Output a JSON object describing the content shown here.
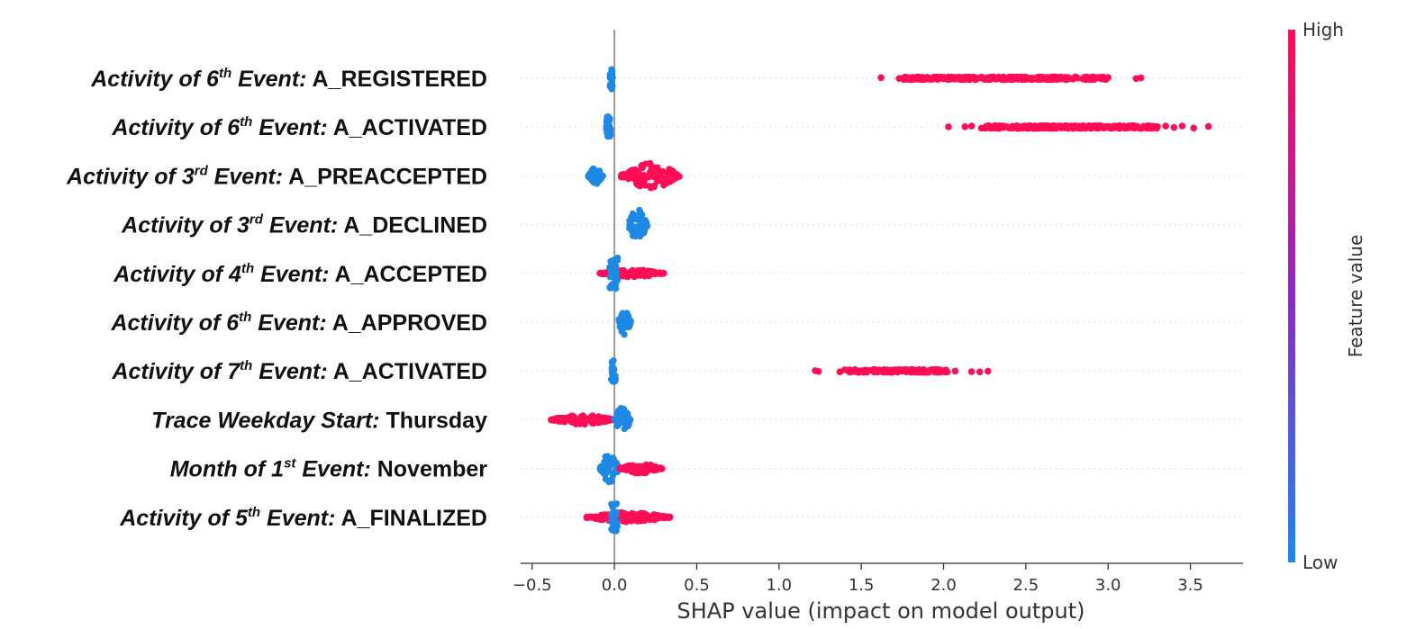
{
  "chart_data": {
    "type": "scatter",
    "subtype": "shap-beeswarm",
    "xlabel": "SHAP value (impact on model output)",
    "xlim": [
      -0.57,
      3.82
    ],
    "xticks": [
      -0.5,
      0.0,
      0.5,
      1.0,
      1.5,
      2.0,
      2.5,
      3.0,
      3.5
    ],
    "xtick_labels": [
      "−0.5",
      "0.0",
      "0.5",
      "1.0",
      "1.5",
      "2.0",
      "2.5",
      "3.0",
      "3.5"
    ],
    "zero_line": 0.0,
    "colorbar": {
      "label": "Feature value",
      "high_label": "High",
      "low_label": "Low",
      "high_color": "#ff0d57",
      "low_color": "#1e88e5",
      "mid_color": "#8a2bbf"
    },
    "features": [
      {
        "label": {
          "prefix": "Activity of 6",
          "sup": "th",
          "event": " Event:",
          "value": " A_REGISTERED"
        },
        "clusters": [
          {
            "color": "low",
            "range": [
              -0.03,
              -0.01
            ],
            "density": "dense",
            "spread": 0.55
          },
          {
            "color": "high",
            "points": [
              1.62,
              1.73,
              1.76,
              1.8,
              1.85,
              1.9,
              3.0,
              3.17,
              3.2
            ],
            "range": [
              1.75,
              3.0
            ],
            "density": "dense",
            "spread": 0.08
          }
        ]
      },
      {
        "label": {
          "prefix": "Activity of 6",
          "sup": "th",
          "event": " Event:",
          "value": " A_ACTIVATED"
        },
        "clusters": [
          {
            "color": "low",
            "range": [
              -0.05,
              -0.02
            ],
            "density": "dense",
            "spread": 0.55
          },
          {
            "color": "high",
            "points": [
              2.03,
              2.13,
              2.17,
              2.23,
              3.3,
              3.35,
              3.4,
              3.45,
              3.52,
              3.61
            ],
            "range": [
              2.25,
              3.3
            ],
            "density": "dense",
            "spread": 0.08
          }
        ]
      },
      {
        "label": {
          "prefix": "Activity of 3",
          "sup": "rd",
          "event": " Event:",
          "value": " A_PREACCEPTED"
        },
        "clusters": [
          {
            "color": "low",
            "range": [
              -0.16,
              -0.07
            ],
            "density": "violin",
            "spread": 0.45
          },
          {
            "color": "high",
            "range": [
              0.04,
              0.4
            ],
            "density": "violin",
            "spread": 0.65
          }
        ]
      },
      {
        "label": {
          "prefix": "Activity of 3",
          "sup": "rd",
          "event": " Event:",
          "value": " A_DECLINED"
        },
        "clusters": [
          {
            "color": "low",
            "range": [
              0.08,
              0.2
            ],
            "density": "violin",
            "spread": 0.8
          }
        ]
      },
      {
        "label": {
          "prefix": "Activity of 4",
          "sup": "th",
          "event": " Event:",
          "value": " A_ACCEPTED"
        },
        "clusters": [
          {
            "color": "high",
            "range": [
              -0.09,
              0.3
            ],
            "density": "violin",
            "spread": 0.2
          },
          {
            "color": "low",
            "range": [
              -0.03,
              0.02
            ],
            "density": "dense",
            "spread": 0.8
          }
        ]
      },
      {
        "label": {
          "prefix": "Activity of 6",
          "sup": "th",
          "event": " Event:",
          "value": " A_APPROVED"
        },
        "clusters": [
          {
            "color": "low",
            "range": [
              0.02,
              0.1
            ],
            "density": "violin",
            "spread": 0.65
          }
        ]
      },
      {
        "label": {
          "prefix": "Activity of 7",
          "sup": "th",
          "event": " Event:",
          "value": " A_ACTIVATED"
        },
        "clusters": [
          {
            "color": "low",
            "range": [
              -0.02,
              0.01
            ],
            "density": "dense",
            "spread": 0.55
          },
          {
            "color": "high",
            "points": [
              1.22,
              1.24,
              1.37,
              1.4,
              2.07,
              2.17,
              2.22,
              2.27
            ],
            "range": [
              1.42,
              2.03
            ],
            "density": "dense",
            "spread": 0.08
          }
        ]
      },
      {
        "label": {
          "prefix": "Trace Weekday Start:",
          "sup": "",
          "event": "",
          "value": " Thursday"
        },
        "clusters": [
          {
            "color": "high",
            "range": [
              -0.39,
              0.0
            ],
            "density": "violin",
            "spread": 0.25
          },
          {
            "color": "low",
            "range": [
              0.0,
              0.1
            ],
            "density": "violin",
            "spread": 0.7
          }
        ]
      },
      {
        "label": {
          "prefix": "Month of 1",
          "sup": "st",
          "event": " Event:",
          "value": " November"
        },
        "clusters": [
          {
            "color": "low",
            "range": [
              -0.09,
              0.03
            ],
            "density": "violin",
            "spread": 0.75
          },
          {
            "color": "high",
            "range": [
              0.03,
              0.29
            ],
            "density": "violin",
            "spread": 0.25
          }
        ]
      },
      {
        "label": {
          "prefix": "Activity of 5",
          "sup": "th",
          "event": " Event:",
          "value": " A_FINALIZED"
        },
        "clusters": [
          {
            "color": "high",
            "range": [
              -0.17,
              0.34
            ],
            "density": "violin",
            "spread": 0.25
          },
          {
            "color": "low",
            "range": [
              -0.02,
              0.02
            ],
            "density": "dense",
            "spread": 0.7
          }
        ]
      }
    ]
  }
}
